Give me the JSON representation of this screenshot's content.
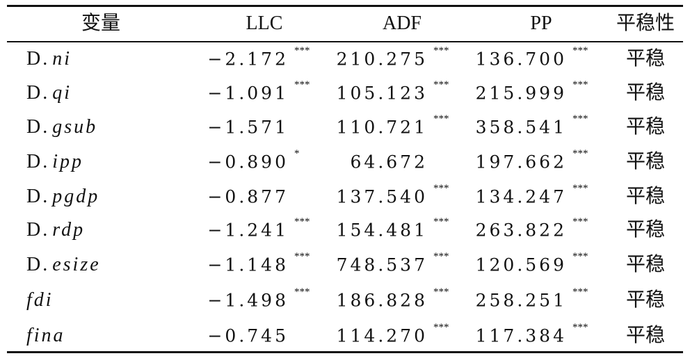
{
  "table": {
    "header": [
      "变量",
      "LLC",
      "ADF",
      "PP",
      "平稳性"
    ],
    "rows": [
      {
        "prefix": "D.",
        "name": "ni",
        "cells": [
          {
            "value": "−2.172",
            "mark": "***"
          },
          {
            "value": "210.275",
            "mark": "***"
          },
          {
            "value": "136.700",
            "mark": "***"
          }
        ],
        "result": "平稳"
      },
      {
        "prefix": "D.",
        "name": "qi",
        "cells": [
          {
            "value": "−1.091",
            "mark": "***"
          },
          {
            "value": "105.123",
            "mark": "***"
          },
          {
            "value": "215.999",
            "mark": "***"
          }
        ],
        "result": "平稳"
      },
      {
        "prefix": "D.",
        "name": "gsub",
        "cells": [
          {
            "value": "−1.571"
          },
          {
            "value": "110.721",
            "mark": "***"
          },
          {
            "value": "358.541",
            "mark": "***"
          }
        ],
        "result": "平稳"
      },
      {
        "prefix": "D.",
        "name": "ipp",
        "cells": [
          {
            "value": "−0.890",
            "mark": "*"
          },
          {
            "value": "64.672"
          },
          {
            "value": "197.662",
            "mark": "***"
          }
        ],
        "result": "平稳"
      },
      {
        "prefix": "D.",
        "name": "pgdp",
        "cells": [
          {
            "value": "−0.877"
          },
          {
            "value": "137.540",
            "mark": "***"
          },
          {
            "value": "134.247",
            "mark": "***"
          }
        ],
        "result": "平稳"
      },
      {
        "prefix": "D.",
        "name": "rdp",
        "cells": [
          {
            "value": "−1.241",
            "mark": "***"
          },
          {
            "value": "154.481",
            "mark": "***"
          },
          {
            "value": "263.822",
            "mark": "***"
          }
        ],
        "result": "平稳"
      },
      {
        "prefix": "D.",
        "name": "esize",
        "cells": [
          {
            "value": "−1.148",
            "mark": "***"
          },
          {
            "value": "748.537",
            "mark": "***"
          },
          {
            "value": "120.569",
            "mark": "***"
          }
        ],
        "result": "平稳"
      },
      {
        "name": "fdi",
        "cells": [
          {
            "value": "−1.498",
            "mark": "***"
          },
          {
            "value": "186.828",
            "mark": "***"
          },
          {
            "value": "258.251",
            "mark": "***"
          }
        ],
        "result": "平稳"
      },
      {
        "name": "fina",
        "cells": [
          {
            "value": "−0.745"
          },
          {
            "value": "114.270",
            "mark": "***"
          },
          {
            "value": "117.384",
            "mark": "***"
          }
        ],
        "result": "平稳"
      }
    ]
  }
}
